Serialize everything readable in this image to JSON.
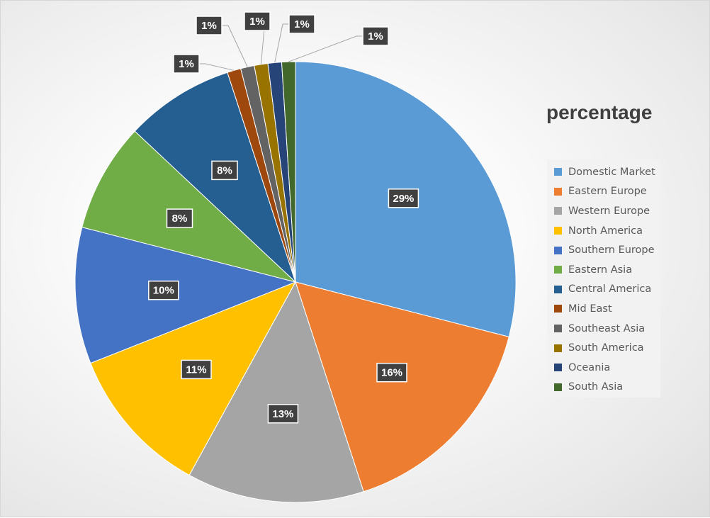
{
  "chart_data": {
    "type": "pie",
    "title": "percentage",
    "categories": [
      "Domestic Market",
      "Eastern Europe",
      "Western Europe",
      "North America",
      "Southern Europe",
      "Eastern Asia",
      "Central America",
      "Mid East",
      "Southeast Asia",
      "South America",
      "Oceania",
      "South Asia"
    ],
    "values": [
      29,
      16,
      13,
      11,
      10,
      8,
      8,
      1,
      1,
      1,
      1,
      1
    ],
    "value_labels": [
      "29%",
      "16%",
      "13%",
      "11%",
      "10%",
      "8%",
      "8%",
      "1%",
      "1%",
      "1%",
      "1%",
      "1%"
    ],
    "colors": [
      "#5B9BD5",
      "#ED7D31",
      "#A5A5A5",
      "#FFC000",
      "#4472C4",
      "#70AD47",
      "#255E91",
      "#9E480E",
      "#636363",
      "#997300",
      "#264478",
      "#43682B"
    ],
    "legend_position": "right",
    "start_angle_deg": 0,
    "direction": "clockwise"
  }
}
